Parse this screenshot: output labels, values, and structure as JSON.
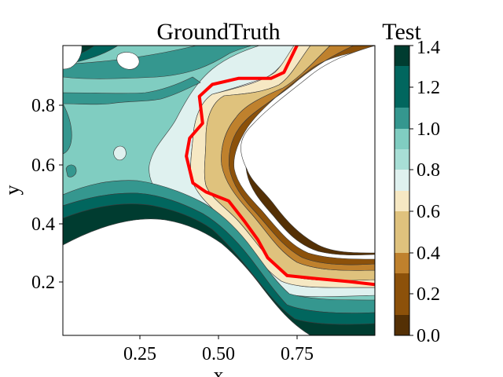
{
  "chart_data": {
    "type": "contour",
    "title": "GroundTruth",
    "colorbar_title": "Test",
    "xlabel": "x",
    "ylabel": "y",
    "xlim": [
      0.02,
      0.98
    ],
    "ylim": [
      0.02,
      0.99
    ],
    "x_ticks": [
      "0.25",
      "0.50",
      "0.75"
    ],
    "x_tick_values": [
      0.25,
      0.5,
      0.75
    ],
    "y_ticks": [
      "0.2",
      "0.4",
      "0.6",
      "0.8"
    ],
    "y_tick_values": [
      0.2,
      0.4,
      0.6,
      0.8
    ],
    "levels": [
      0.0,
      0.1,
      0.2,
      0.3,
      0.4,
      0.5,
      0.6,
      0.7,
      0.8,
      0.9,
      1.0,
      1.1,
      1.2,
      1.3,
      1.4
    ],
    "colorbar_ticks": [
      "0.0",
      "0.2",
      "0.4",
      "0.6",
      "0.8",
      "1.0",
      "1.2",
      "1.4"
    ],
    "colorbar_tick_values": [
      0.0,
      0.2,
      0.4,
      0.6,
      0.8,
      1.0,
      1.2,
      1.4
    ],
    "colormap": "BrBG",
    "level_colors": [
      "#543005",
      "#8c510a",
      "#bf812d",
      "#dfc27d",
      "#f6e8c3",
      "#dff1ef",
      "#a8dfd6",
      "#80cdc1",
      "#35978f",
      "#01665e",
      "#003c30"
    ],
    "highlight_contour": {
      "color": "#ff0000",
      "points": [
        [
          0.74,
          0.99
        ],
        [
          0.7,
          0.9
        ],
        [
          0.66,
          0.88
        ],
        [
          0.56,
          0.88
        ],
        [
          0.48,
          0.86
        ],
        [
          0.44,
          0.82
        ],
        [
          0.45,
          0.73
        ],
        [
          0.41,
          0.68
        ],
        [
          0.4,
          0.62
        ],
        [
          0.42,
          0.53
        ],
        [
          0.46,
          0.5
        ],
        [
          0.53,
          0.47
        ],
        [
          0.58,
          0.4
        ],
        [
          0.62,
          0.34
        ],
        [
          0.65,
          0.28
        ],
        [
          0.71,
          0.22
        ],
        [
          0.8,
          0.21
        ],
        [
          0.9,
          0.2
        ],
        [
          0.98,
          0.19
        ]
      ]
    }
  }
}
